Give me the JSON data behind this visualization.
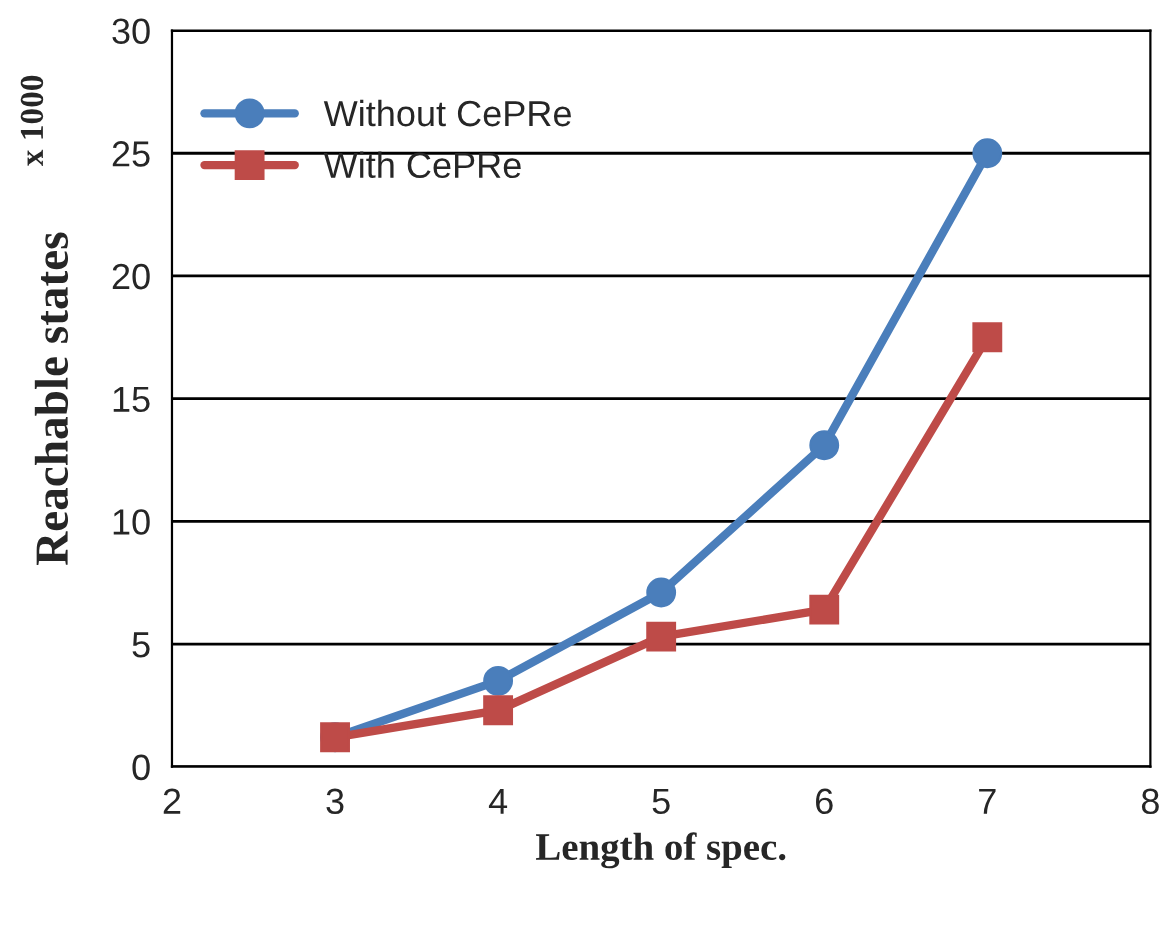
{
  "chart_data": {
    "type": "line",
    "xlabel": "Length of spec.",
    "ylabel": "Reachable states",
    "annotations": [
      "x 1000"
    ],
    "x": [
      3,
      4,
      5,
      6,
      7
    ],
    "series": [
      {
        "name": "Without CePRe",
        "color": "#4a7ebb",
        "marker": "circle",
        "values": [
          1.2,
          3.5,
          7.1,
          13.1,
          25
        ]
      },
      {
        "name": "With CePRe",
        "color": "#be4b48",
        "marker": "square",
        "values": [
          1.2,
          2.3,
          5.3,
          6.4,
          17.5
        ]
      }
    ],
    "xlim": [
      2,
      8
    ],
    "xticks": [
      2,
      3,
      4,
      5,
      6,
      7,
      8
    ],
    "ylim": [
      0,
      30
    ],
    "yticks": [
      0,
      5,
      10,
      15,
      20,
      25,
      30
    ],
    "grid": "y",
    "legend": "top left",
    "line_style": "solid"
  }
}
